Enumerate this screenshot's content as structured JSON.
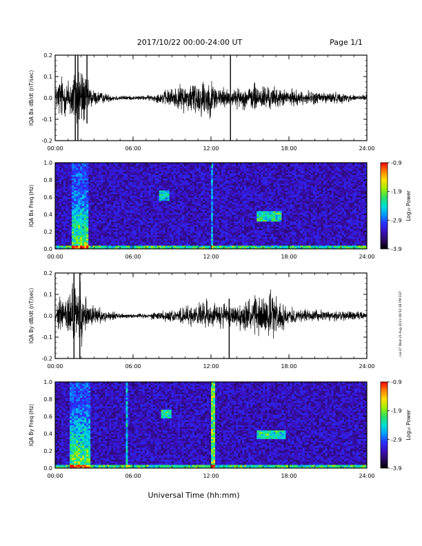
{
  "header": {
    "date_range": "2017/10/22  00:00-24:00 UT",
    "page": "Page 1/1"
  },
  "footer": {
    "xlabel": "Universal Time (hh:mm)"
  },
  "side_stamp": "cai-47 Wed 23 Aug 2023 08:52:38 PM EST",
  "colors": {
    "waveform": "#000000",
    "frame": "#000000",
    "background": "#ffffff",
    "colormap": [
      "#000000",
      "#2a0a5e",
      "#3a10c0",
      "#2a30ff",
      "#00a0ff",
      "#00e0d0",
      "#30e060",
      "#a0f000",
      "#ffe000",
      "#ff8000",
      "#ff0000"
    ]
  },
  "chart_data": [
    {
      "type": "line",
      "id": "bx-wave",
      "xlabel": "",
      "ylabel": "IQA Bx dB/dt (nT/sec)",
      "x_ticks": [
        "00:00",
        "06:00",
        "12:00",
        "18:00",
        "24:00"
      ],
      "y_ticks": [
        "-0.2",
        "-0.1",
        "0.0",
        "0.1",
        "0.2"
      ],
      "xlim": [
        0,
        24
      ],
      "ylim": [
        -0.2,
        0.2
      ],
      "x_unit": "hours UT",
      "envelope": {
        "x": [
          0,
          0.4,
          0.8,
          1.0,
          1.3,
          1.6,
          1.8,
          2.0,
          2.3,
          2.6,
          3.0,
          3.5,
          4.0,
          5.0,
          6.0,
          7.0,
          7.5,
          8.0,
          9.0,
          10.0,
          10.5,
          11.0,
          11.5,
          12.0,
          12.5,
          13.0,
          13.5,
          14.0,
          15.0,
          15.5,
          16.0,
          16.5,
          17.0,
          17.5,
          18.0,
          19.0,
          20.0,
          21.0,
          22.0,
          23.0,
          24.0
        ],
        "amplitude": [
          0.05,
          0.15,
          0.1,
          0.12,
          0.16,
          0.2,
          0.2,
          0.2,
          0.14,
          0.08,
          0.05,
          0.035,
          0.025,
          0.015,
          0.012,
          0.014,
          0.02,
          0.03,
          0.06,
          0.08,
          0.1,
          0.11,
          0.12,
          0.1,
          0.08,
          0.06,
          0.05,
          0.055,
          0.07,
          0.09,
          0.08,
          0.07,
          0.06,
          0.05,
          0.05,
          0.04,
          0.04,
          0.035,
          0.03,
          0.02,
          0.02
        ]
      },
      "spikes": [
        {
          "x": 1.55,
          "ymin": -0.2,
          "ymax": 0.2
        },
        {
          "x": 1.75,
          "ymin": -0.2,
          "ymax": 0.2
        },
        {
          "x": 2.45,
          "ymin": -0.12,
          "ymax": 0.2
        },
        {
          "x": 13.5,
          "ymin": -0.2,
          "ymax": 0.2
        }
      ]
    },
    {
      "type": "heatmap",
      "id": "bx-spec",
      "xlabel": "",
      "ylabel": "IQA Bx Freq (Hz)",
      "x_ticks": [
        "00:00",
        "06:00",
        "12:00",
        "18:00",
        "24:00"
      ],
      "y_ticks": [
        "0.0",
        "0.2",
        "0.4",
        "0.6",
        "0.8",
        "1.0"
      ],
      "xlim": [
        0,
        24
      ],
      "ylim": [
        0,
        1.0
      ],
      "colorbar": {
        "label": "Log₁₀ Power",
        "range": [
          -3.9,
          -0.9
        ],
        "ticks": [
          "-0.9",
          "-1.9",
          "-2.9",
          "-3.9"
        ]
      },
      "features": [
        {
          "kind": "band",
          "x_range": [
            1.3,
            2.6
          ],
          "f_range": [
            0.0,
            1.0
          ],
          "level": 0.55
        },
        {
          "kind": "band",
          "x_range": [
            0.0,
            24.0
          ],
          "f_range": [
            0.0,
            0.04
          ],
          "level": 0.45
        },
        {
          "kind": "blob",
          "x_range": [
            8.0,
            8.8
          ],
          "f_range": [
            0.56,
            0.68
          ],
          "level": 0.35
        },
        {
          "kind": "blob",
          "x_range": [
            15.5,
            17.5
          ],
          "f_range": [
            0.32,
            0.44
          ],
          "level": 0.4
        },
        {
          "kind": "line",
          "x_range": [
            12.0,
            12.1
          ],
          "f_range": [
            0.0,
            1.0
          ],
          "level": 0.25
        }
      ]
    },
    {
      "type": "line",
      "id": "by-wave",
      "xlabel": "",
      "ylabel": "IQA By dB/dt (nT/sec)",
      "x_ticks": [
        "00:00",
        "06:00",
        "12:00",
        "18:00",
        "24:00"
      ],
      "y_ticks": [
        "-0.2",
        "-0.1",
        "0.0",
        "0.1",
        "0.2"
      ],
      "xlim": [
        0,
        24
      ],
      "ylim": [
        -0.2,
        0.2
      ],
      "x_unit": "hours UT",
      "envelope": {
        "x": [
          0,
          0.4,
          0.8,
          1.0,
          1.3,
          1.6,
          1.8,
          2.0,
          2.3,
          2.6,
          3.0,
          3.5,
          4.0,
          5.0,
          6.0,
          7.0,
          7.5,
          8.0,
          9.0,
          10.0,
          10.5,
          11.0,
          11.5,
          12.0,
          12.5,
          13.0,
          13.5,
          14.0,
          15.0,
          15.5,
          16.0,
          16.5,
          17.0,
          17.5,
          18.0,
          19.0,
          20.0,
          21.0,
          22.0,
          23.0,
          24.0
        ],
        "amplitude": [
          0.04,
          0.1,
          0.12,
          0.16,
          0.2,
          0.2,
          0.2,
          0.18,
          0.12,
          0.08,
          0.06,
          0.04,
          0.03,
          0.015,
          0.012,
          0.014,
          0.02,
          0.025,
          0.04,
          0.05,
          0.06,
          0.07,
          0.08,
          0.09,
          0.08,
          0.07,
          0.06,
          0.07,
          0.1,
          0.12,
          0.13,
          0.13,
          0.12,
          0.08,
          0.05,
          0.04,
          0.035,
          0.03,
          0.03,
          0.025,
          0.02
        ]
      },
      "spikes": [
        {
          "x": 1.45,
          "ymin": -0.2,
          "ymax": 0.2
        },
        {
          "x": 1.9,
          "ymin": -0.2,
          "ymax": 0.2
        },
        {
          "x": 13.4,
          "ymin": -0.2,
          "ymax": 0.08
        }
      ]
    },
    {
      "type": "heatmap",
      "id": "by-spec",
      "xlabel": "",
      "ylabel": "IQA By Freq (Hz)",
      "x_ticks": [
        "00:00",
        "06:00",
        "12:00",
        "18:00",
        "24:00"
      ],
      "y_ticks": [
        "0.0",
        "0.2",
        "0.4",
        "0.6",
        "0.8",
        "1.0"
      ],
      "xlim": [
        0,
        24
      ],
      "ylim": [
        0,
        1.0
      ],
      "colorbar": {
        "label": "Log₁₀ Power",
        "range": [
          -3.9,
          -0.9
        ],
        "ticks": [
          "-0.9",
          "-1.9",
          "-2.9",
          "-3.9"
        ]
      },
      "features": [
        {
          "kind": "band",
          "x_range": [
            1.2,
            2.7
          ],
          "f_range": [
            0.0,
            1.0
          ],
          "level": 0.55
        },
        {
          "kind": "band",
          "x_range": [
            0.0,
            24.0
          ],
          "f_range": [
            0.0,
            0.04
          ],
          "level": 0.45
        },
        {
          "kind": "line",
          "x_range": [
            5.45,
            5.55
          ],
          "f_range": [
            0.0,
            1.0
          ],
          "level": 0.3
        },
        {
          "kind": "blob",
          "x_range": [
            8.2,
            9.0
          ],
          "f_range": [
            0.58,
            0.68
          ],
          "level": 0.4
        },
        {
          "kind": "line",
          "x_range": [
            12.05,
            12.25
          ],
          "f_range": [
            0.0,
            1.0
          ],
          "level": 0.55
        },
        {
          "kind": "blob",
          "x_range": [
            15.5,
            17.8
          ],
          "f_range": [
            0.34,
            0.44
          ],
          "level": 0.4
        }
      ]
    }
  ]
}
